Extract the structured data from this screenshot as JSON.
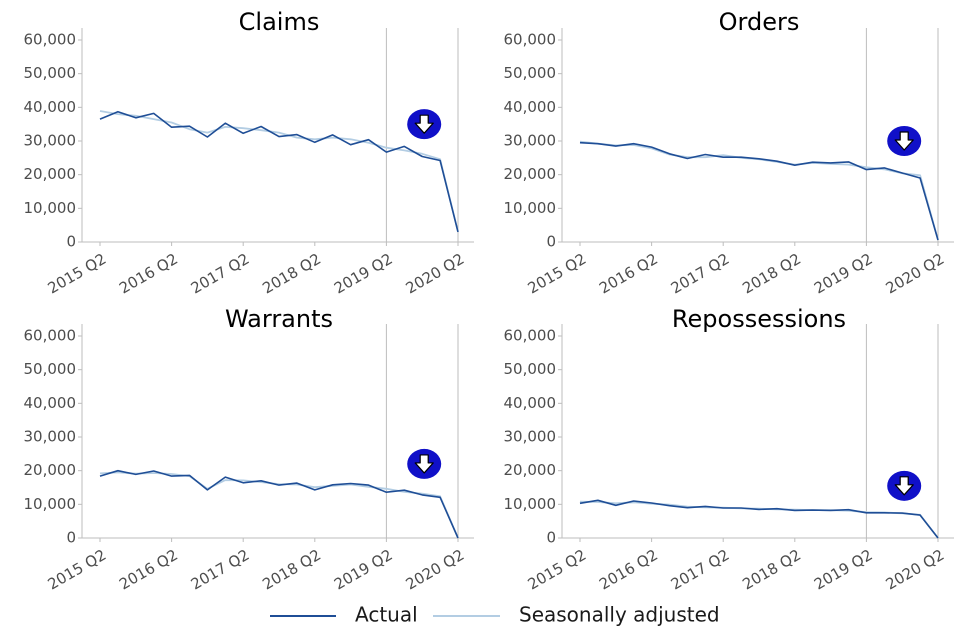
{
  "colors": {
    "actual": "#1f4e96",
    "seasonally_adjusted": "#b3cde3",
    "axis": "#bdbdbd",
    "tick_text": "#4d4d4d",
    "title_text": "#000000",
    "arrow_badge": "#1010c8"
  },
  "legend": {
    "position": "bottom",
    "items": [
      {
        "label": "Actual",
        "color": "#1f4e96"
      },
      {
        "label": "Seasonally adjusted",
        "color": "#b3cde3"
      }
    ]
  },
  "chart_data": [
    {
      "type": "line",
      "title": "Claims",
      "ylim": [
        0,
        60000
      ],
      "y_ticks": [
        "0",
        "10,000",
        "20,000",
        "30,000",
        "40,000",
        "50,000",
        "60,000"
      ],
      "x_tick_labels": [
        "2015 Q2",
        "2016 Q2",
        "2017 Q2",
        "2018 Q2",
        "2019 Q2",
        "2020 Q2"
      ],
      "vertical_lines_at": [
        "2019 Q2",
        "2020 Q2"
      ],
      "marker_icon": "down-arrow-icon",
      "marker_at": {
        "x": "2019 Q4",
        "y": 35000
      },
      "x": [
        "2015 Q2",
        "2015 Q3",
        "2015 Q4",
        "2016 Q1",
        "2016 Q2",
        "2016 Q3",
        "2016 Q4",
        "2017 Q1",
        "2017 Q2",
        "2017 Q3",
        "2017 Q4",
        "2018 Q1",
        "2018 Q2",
        "2018 Q3",
        "2018 Q4",
        "2019 Q1",
        "2019 Q2",
        "2019 Q3",
        "2019 Q4",
        "2020 Q1",
        "2020 Q2"
      ],
      "series": [
        {
          "name": "Actual",
          "values": [
            36500,
            38700,
            36900,
            38200,
            34100,
            34400,
            31200,
            35300,
            32300,
            34300,
            31300,
            31900,
            29600,
            31800,
            28900,
            30400,
            26700,
            28400,
            25400,
            24200,
            3000
          ]
        },
        {
          "name": "Seasonally adjusted",
          "values": [
            38900,
            38000,
            37500,
            36500,
            35500,
            33500,
            32500,
            34200,
            33800,
            33200,
            32500,
            31000,
            30500,
            31000,
            30500,
            29500,
            28000,
            27200,
            26200,
            24600,
            3000
          ]
        }
      ]
    },
    {
      "type": "line",
      "title": "Orders",
      "ylim": [
        0,
        60000
      ],
      "y_ticks": [
        "0",
        "10,000",
        "20,000",
        "30,000",
        "40,000",
        "50,000",
        "60,000"
      ],
      "x_tick_labels": [
        "2015 Q2",
        "2016 Q2",
        "2017 Q2",
        "2018 Q2",
        "2019 Q2",
        "2020 Q2"
      ],
      "vertical_lines_at": [
        "2019 Q2",
        "2020 Q2"
      ],
      "marker_icon": "down-arrow-icon",
      "marker_at": {
        "x": "2019 Q4",
        "y": 30000
      },
      "x": [
        "2015 Q2",
        "2015 Q3",
        "2015 Q4",
        "2016 Q1",
        "2016 Q2",
        "2016 Q3",
        "2016 Q4",
        "2017 Q1",
        "2017 Q2",
        "2017 Q3",
        "2017 Q4",
        "2018 Q1",
        "2018 Q2",
        "2018 Q3",
        "2018 Q4",
        "2019 Q1",
        "2019 Q2",
        "2019 Q3",
        "2019 Q4",
        "2020 Q1",
        "2020 Q2"
      ],
      "series": [
        {
          "name": "Actual",
          "values": [
            29500,
            29200,
            28500,
            29200,
            28200,
            26200,
            24800,
            26000,
            25200,
            25200,
            24700,
            24000,
            22800,
            23700,
            23500,
            23800,
            21500,
            22000,
            20500,
            19000,
            600
          ]
        },
        {
          "name": "Seasonally adjusted",
          "values": [
            29800,
            29200,
            28700,
            28800,
            27800,
            26000,
            25200,
            25200,
            25800,
            25000,
            24600,
            23800,
            23000,
            23500,
            23200,
            23000,
            22200,
            21600,
            20400,
            19800,
            600
          ]
        }
      ]
    },
    {
      "type": "line",
      "title": "Warrants",
      "ylim": [
        0,
        60000
      ],
      "y_ticks": [
        "0",
        "10,000",
        "20,000",
        "30,000",
        "40,000",
        "50,000",
        "60,000"
      ],
      "x_tick_labels": [
        "2015 Q2",
        "2016 Q2",
        "2017 Q2",
        "2018 Q2",
        "2019 Q2",
        "2020 Q2"
      ],
      "vertical_lines_at": [
        "2019 Q2",
        "2020 Q2"
      ],
      "marker_icon": "down-arrow-icon",
      "marker_at": {
        "x": "2019 Q4",
        "y": 22000
      },
      "x": [
        "2015 Q2",
        "2015 Q3",
        "2015 Q4",
        "2016 Q1",
        "2016 Q2",
        "2016 Q3",
        "2016 Q4",
        "2017 Q1",
        "2017 Q2",
        "2017 Q3",
        "2017 Q4",
        "2018 Q1",
        "2018 Q2",
        "2018 Q3",
        "2018 Q4",
        "2019 Q1",
        "2019 Q2",
        "2019 Q3",
        "2019 Q4",
        "2020 Q1",
        "2020 Q2"
      ],
      "series": [
        {
          "name": "Actual",
          "values": [
            18400,
            20000,
            18900,
            19900,
            18400,
            18600,
            14300,
            18100,
            16400,
            17000,
            15700,
            16300,
            14300,
            15800,
            16200,
            15700,
            13600,
            14200,
            12800,
            12100,
            0
          ]
        },
        {
          "name": "Seasonally adjusted",
          "values": [
            19200,
            19500,
            19100,
            19300,
            19000,
            18400,
            14600,
            17200,
            17100,
            16600,
            16000,
            15900,
            15100,
            15500,
            15900,
            15200,
            14600,
            13700,
            13200,
            12400,
            0
          ]
        }
      ]
    },
    {
      "type": "line",
      "title": "Repossessions",
      "ylim": [
        0,
        60000
      ],
      "y_ticks": [
        "0",
        "10,000",
        "20,000",
        "30,000",
        "40,000",
        "50,000",
        "60,000"
      ],
      "x_tick_labels": [
        "2015 Q2",
        "2016 Q2",
        "2017 Q2",
        "2018 Q2",
        "2019 Q2",
        "2020 Q2"
      ],
      "vertical_lines_at": [
        "2019 Q2",
        "2020 Q2"
      ],
      "marker_icon": "down-arrow-icon",
      "marker_at": {
        "x": "2019 Q4",
        "y": 15500
      },
      "x": [
        "2015 Q2",
        "2015 Q3",
        "2015 Q4",
        "2016 Q1",
        "2016 Q2",
        "2016 Q3",
        "2016 Q4",
        "2017 Q1",
        "2017 Q2",
        "2017 Q3",
        "2017 Q4",
        "2018 Q1",
        "2018 Q2",
        "2018 Q3",
        "2018 Q4",
        "2019 Q1",
        "2019 Q2",
        "2019 Q3",
        "2019 Q4",
        "2020 Q1",
        "2020 Q2"
      ],
      "series": [
        {
          "name": "Actual",
          "values": [
            10300,
            11200,
            9700,
            11000,
            10400,
            9600,
            9000,
            9400,
            8900,
            8900,
            8500,
            8700,
            8200,
            8300,
            8200,
            8400,
            7500,
            7500,
            7400,
            6800,
            0
          ]
        },
        {
          "name": "Seasonally adjusted",
          "values": [
            10800,
            10700,
            10300,
            10600,
            10200,
            9900,
            9300,
            9100,
            9000,
            8800,
            8700,
            8500,
            8400,
            8300,
            8300,
            8100,
            7700,
            7600,
            7300,
            6900,
            0
          ]
        }
      ]
    }
  ]
}
